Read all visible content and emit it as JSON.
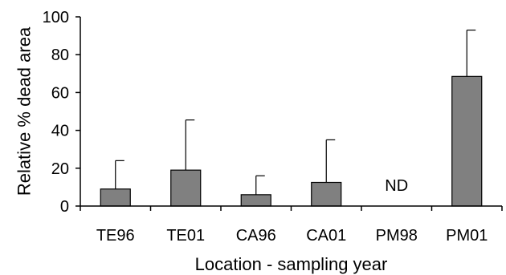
{
  "chart_data": {
    "type": "bar",
    "title": "",
    "xlabel": "Location - sampling year",
    "ylabel": "Relative % dead area",
    "ylim": [
      0,
      100
    ],
    "yticks": [
      0,
      20,
      40,
      60,
      80,
      100
    ],
    "grid": false,
    "legend": "none",
    "categories": [
      "TE96",
      "TE01",
      "CA96",
      "CA01",
      "PM98",
      "PM01"
    ],
    "values": [
      9,
      19,
      6,
      12.5,
      null,
      68.5
    ],
    "error_upper": [
      24,
      45.5,
      16,
      35,
      null,
      93
    ],
    "data_labels": [
      "",
      "",
      "",
      "",
      "ND",
      ""
    ],
    "colors": {
      "bar_fill": "#808080",
      "bar_stroke": "#000000",
      "axis": "#000000"
    }
  }
}
